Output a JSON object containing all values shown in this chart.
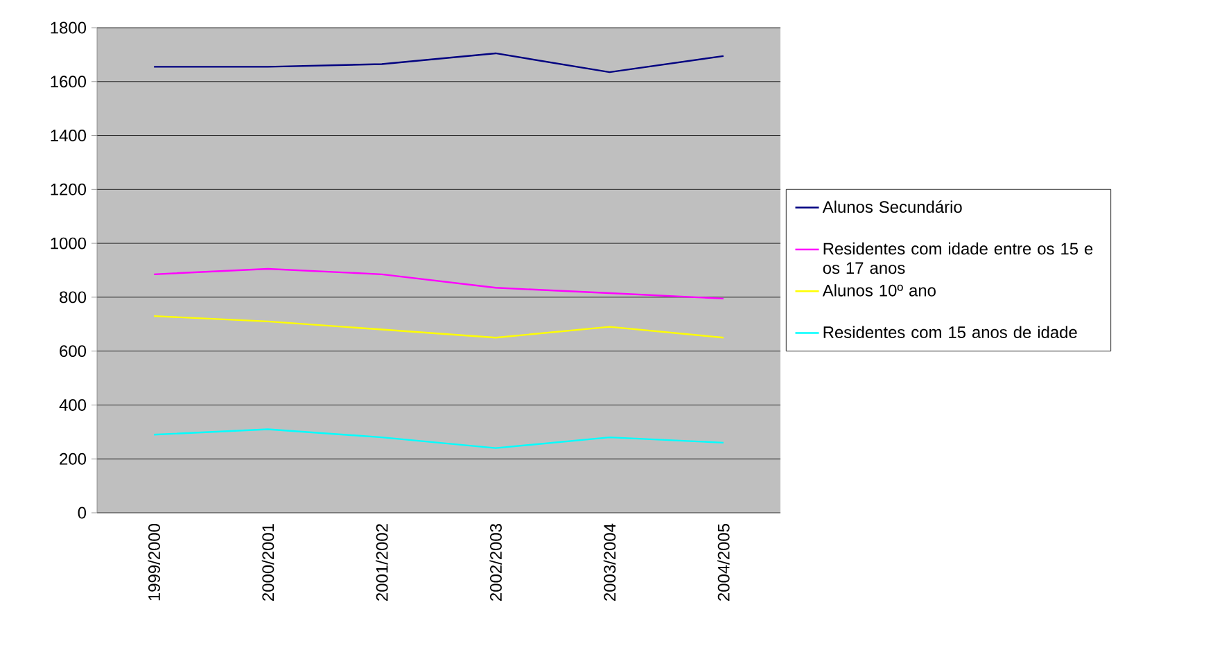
{
  "chart_data": {
    "type": "line",
    "categories": [
      "1999/2000",
      "2000/2001",
      "2001/2002",
      "2002/2003",
      "2003/2004",
      "2004/2005"
    ],
    "series": [
      {
        "name": "Alunos Secundário",
        "color": "#000080",
        "values": [
          1655,
          1655,
          1665,
          1705,
          1635,
          1695
        ]
      },
      {
        "name": "Residentes com idade entre os 15 e os 17 anos",
        "color": "#ff00ff",
        "values": [
          885,
          905,
          885,
          835,
          815,
          795
        ]
      },
      {
        "name": "Alunos 10º ano",
        "color": "#ffff00",
        "values": [
          730,
          710,
          680,
          650,
          690,
          650
        ]
      },
      {
        "name": "Residentes com 15  anos de idade",
        "color": "#00ffff",
        "values": [
          290,
          310,
          280,
          240,
          280,
          260
        ]
      }
    ],
    "ylim": [
      0,
      1800
    ],
    "yticks": [
      0,
      200,
      400,
      600,
      800,
      1000,
      1200,
      1400,
      1600,
      1800
    ],
    "grid": "y",
    "legend": "right",
    "marker": "none",
    "line_style": "solid"
  }
}
